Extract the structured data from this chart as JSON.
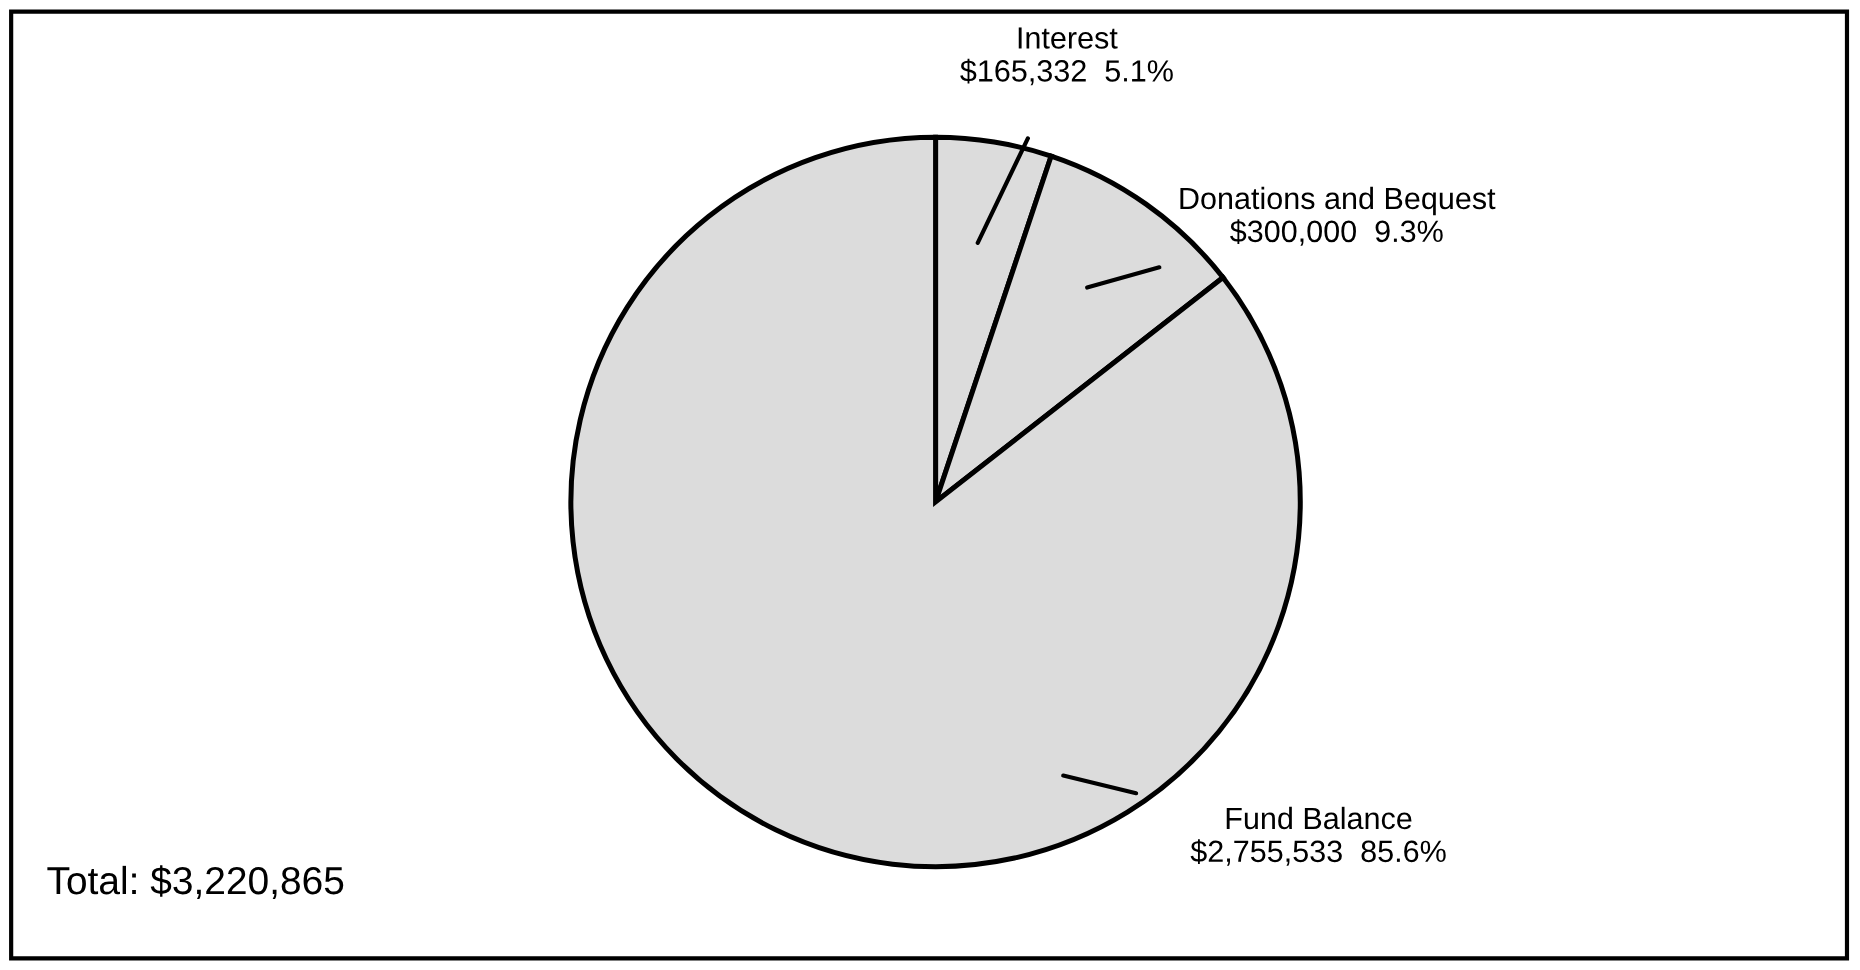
{
  "chart_data": {
    "type": "pie",
    "categories": [
      "Interest",
      "Donations and Bequest",
      "Fund Balance"
    ],
    "values": [
      165332,
      300000,
      2755533
    ],
    "value_labels": [
      "$165,332  5.1%",
      "$300,000  9.3%",
      "$2,755,533  85.6%"
    ],
    "colors": [
      "#dcdcdc",
      "#dcdcdc",
      "#dcdcdc"
    ],
    "annotations": [
      "Total: $3,220,865"
    ],
    "legend": false
  }
}
